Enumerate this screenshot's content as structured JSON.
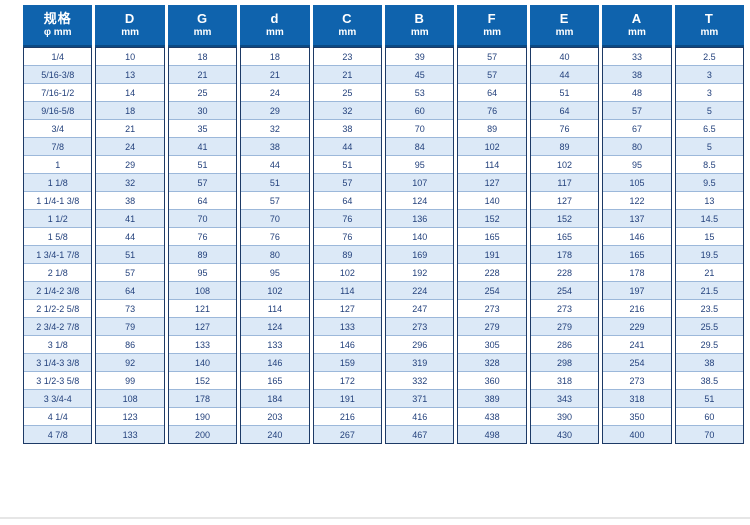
{
  "table": {
    "columns": [
      {
        "id": "spec",
        "label": "规格",
        "sub": "φ mm"
      },
      {
        "id": "D",
        "label": "D",
        "sub": "mm"
      },
      {
        "id": "G",
        "label": "G",
        "sub": "mm"
      },
      {
        "id": "d",
        "label": "d",
        "sub": "mm"
      },
      {
        "id": "C",
        "label": "C",
        "sub": "mm"
      },
      {
        "id": "B",
        "label": "B",
        "sub": "mm"
      },
      {
        "id": "F",
        "label": "F",
        "sub": "mm"
      },
      {
        "id": "E",
        "label": "E",
        "sub": "mm"
      },
      {
        "id": "A",
        "label": "A",
        "sub": "mm"
      },
      {
        "id": "T",
        "label": "T",
        "sub": "mm"
      }
    ],
    "rows": [
      [
        "1/4",
        "10",
        "18",
        "18",
        "23",
        "39",
        "57",
        "40",
        "33",
        "2.5"
      ],
      [
        "5/16-3/8",
        "13",
        "21",
        "21",
        "21",
        "45",
        "57",
        "44",
        "38",
        "3"
      ],
      [
        "7/16-1/2",
        "14",
        "25",
        "24",
        "25",
        "53",
        "64",
        "51",
        "48",
        "3"
      ],
      [
        "9/16-5/8",
        "18",
        "30",
        "29",
        "32",
        "60",
        "76",
        "64",
        "57",
        "5"
      ],
      [
        "3/4",
        "21",
        "35",
        "32",
        "38",
        "70",
        "89",
        "76",
        "67",
        "6.5"
      ],
      [
        "7/8",
        "24",
        "41",
        "38",
        "44",
        "84",
        "102",
        "89",
        "80",
        "5"
      ],
      [
        "1",
        "29",
        "51",
        "44",
        "51",
        "95",
        "114",
        "102",
        "95",
        "8.5"
      ],
      [
        "1 1/8",
        "32",
        "57",
        "51",
        "57",
        "107",
        "127",
        "117",
        "105",
        "9.5"
      ],
      [
        "1 1/4-1 3/8",
        "38",
        "64",
        "57",
        "64",
        "124",
        "140",
        "127",
        "122",
        "13"
      ],
      [
        "1 1/2",
        "41",
        "70",
        "70",
        "76",
        "136",
        "152",
        "152",
        "137",
        "14.5"
      ],
      [
        "1 5/8",
        "44",
        "76",
        "76",
        "76",
        "140",
        "165",
        "165",
        "146",
        "15"
      ],
      [
        "1 3/4-1 7/8",
        "51",
        "89",
        "80",
        "89",
        "169",
        "191",
        "178",
        "165",
        "19.5"
      ],
      [
        "2 1/8",
        "57",
        "95",
        "95",
        "102",
        "192",
        "228",
        "228",
        "178",
        "21"
      ],
      [
        "2 1/4-2 3/8",
        "64",
        "108",
        "102",
        "114",
        "224",
        "254",
        "254",
        "197",
        "21.5"
      ],
      [
        "2 1/2-2 5/8",
        "73",
        "121",
        "114",
        "127",
        "247",
        "273",
        "273",
        "216",
        "23.5"
      ],
      [
        "2 3/4-2 7/8",
        "79",
        "127",
        "124",
        "133",
        "273",
        "279",
        "279",
        "229",
        "25.5"
      ],
      [
        "3 1/8",
        "86",
        "133",
        "133",
        "146",
        "296",
        "305",
        "286",
        "241",
        "29.5"
      ],
      [
        "3 1/4-3 3/8",
        "92",
        "140",
        "146",
        "159",
        "319",
        "328",
        "298",
        "254",
        "38"
      ],
      [
        "3 1/2-3 5/8",
        "99",
        "152",
        "165",
        "172",
        "332",
        "360",
        "318",
        "273",
        "38.5"
      ],
      [
        "3 3/4-4",
        "108",
        "178",
        "184",
        "191",
        "371",
        "389",
        "343",
        "318",
        "51"
      ],
      [
        "4 1/4",
        "123",
        "190",
        "203",
        "216",
        "416",
        "438",
        "390",
        "350",
        "60"
      ],
      [
        "4 7/8",
        "133",
        "200",
        "240",
        "267",
        "467",
        "498",
        "430",
        "400",
        "70"
      ]
    ]
  },
  "colors": {
    "header_blue": "#0f63ad",
    "row_stripe": "#dce9f7",
    "body_text": "#23417c",
    "column_border": "#1d3a66",
    "row_line": "#9cb8da"
  }
}
